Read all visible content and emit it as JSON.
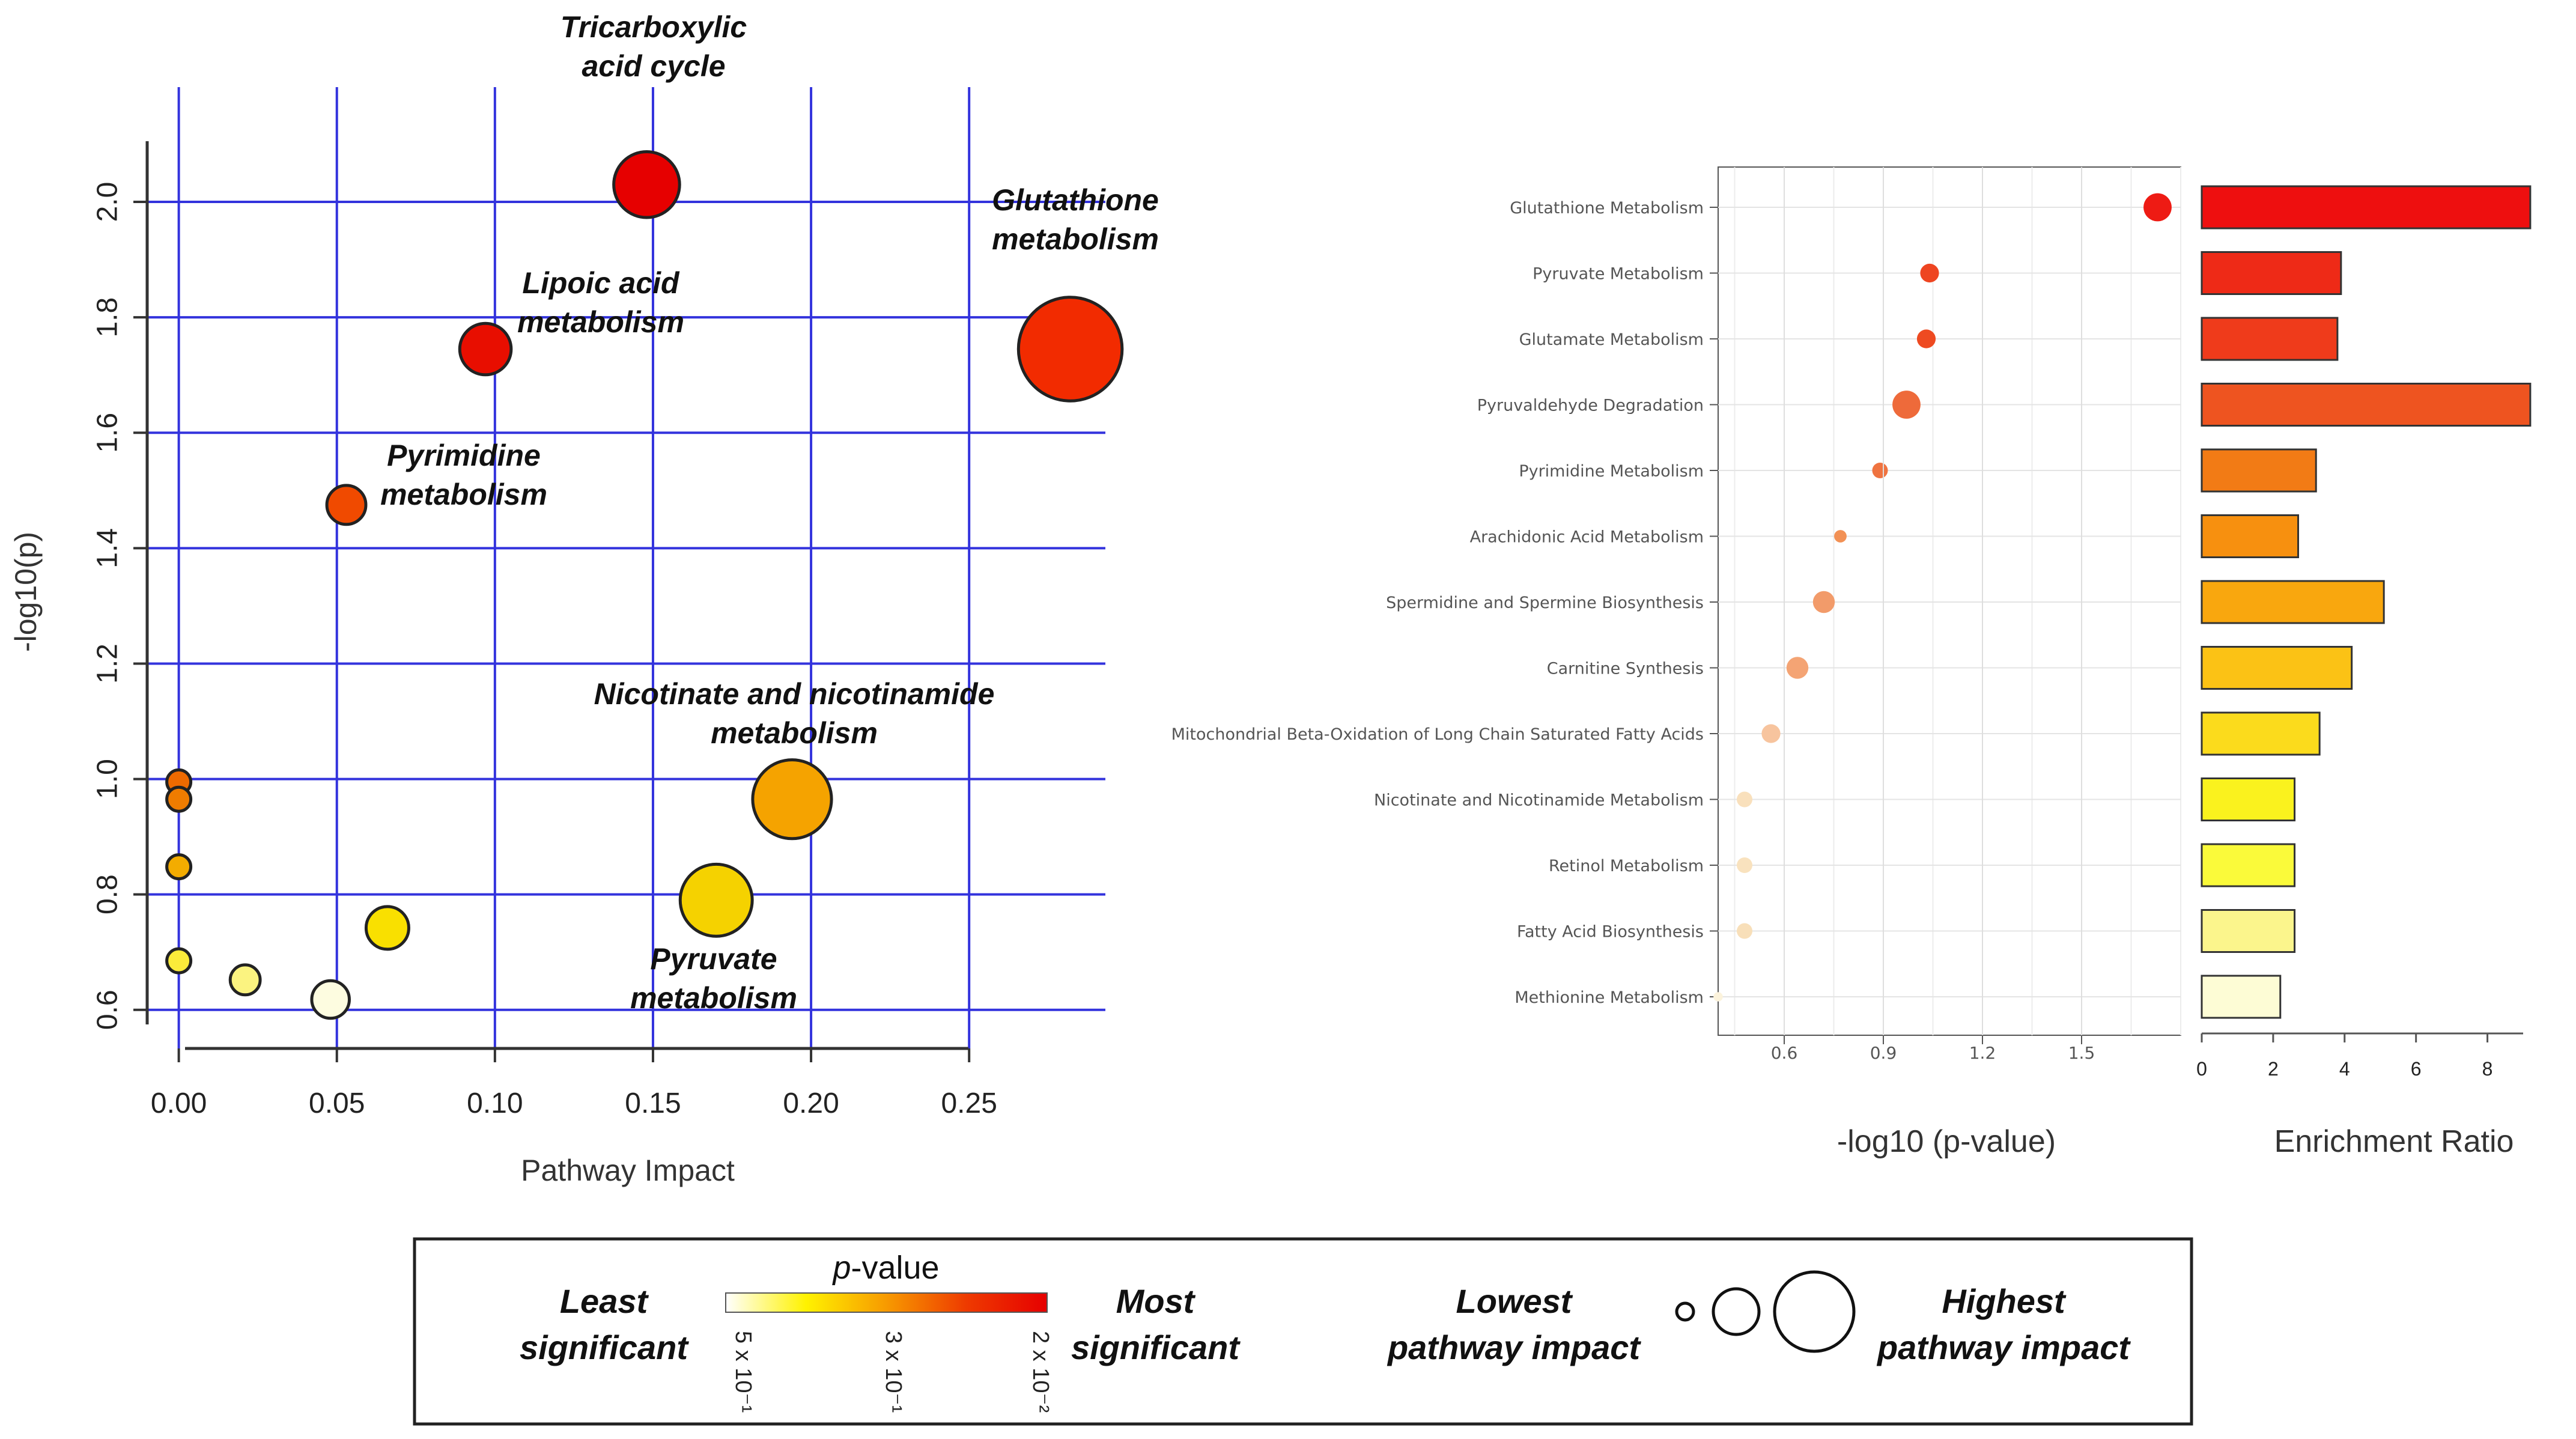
{
  "chart_data": [
    {
      "type": "scatter",
      "xlabel": "Pathway Impact",
      "ylabel": "-log10(p)",
      "xlim": [
        -0.01,
        0.295
      ],
      "ylim": [
        0.58,
        2.1
      ],
      "xticks": [
        "0.00",
        "0.05",
        "0.10",
        "0.15",
        "0.20",
        "0.25"
      ],
      "yticks": [
        "0.6",
        "0.8",
        "1.0",
        "1.2",
        "1.4",
        "1.6",
        "1.8",
        "2.0"
      ],
      "grid": true,
      "points": [
        {
          "x": 0.148,
          "y": 2.03,
          "impact": 0.148,
          "color": "#e60000",
          "label_lines": [
            "Tricarboxylic",
            "acid cycle"
          ]
        },
        {
          "x": 0.282,
          "y": 1.745,
          "impact": 0.282,
          "color": "#f22b00",
          "label_lines": [
            "Glutathione",
            "metabolism"
          ]
        },
        {
          "x": 0.097,
          "y": 1.745,
          "impact": 0.097,
          "color": "#e80e00",
          "label_lines": [
            "Lipoic acid",
            "metabolism"
          ]
        },
        {
          "x": 0.053,
          "y": 1.475,
          "impact": 0.053,
          "color": "#f04a00",
          "label_lines": [
            "Pyrimidine",
            "metabolism"
          ]
        },
        {
          "x": 0.194,
          "y": 0.965,
          "impact": 0.194,
          "color": "#f5a300",
          "label_lines": [
            "Nicotinate and nicotinamide",
            "metabolism"
          ]
        },
        {
          "x": 0.17,
          "y": 0.79,
          "impact": 0.17,
          "color": "#f5d200",
          "label_lines": [
            "Pyruvate",
            "metabolism"
          ]
        },
        {
          "x": 0.0,
          "y": 0.995,
          "impact": 0.0,
          "color": "#ee6a00",
          "label_lines": []
        },
        {
          "x": 0.0,
          "y": 0.965,
          "impact": 0.0,
          "color": "#ef7c00",
          "label_lines": []
        },
        {
          "x": 0.0,
          "y": 0.848,
          "impact": 0.0,
          "color": "#f3ac00",
          "label_lines": []
        },
        {
          "x": 0.0,
          "y": 0.685,
          "impact": 0.0,
          "color": "#fbeb3a",
          "label_lines": []
        },
        {
          "x": 0.066,
          "y": 0.742,
          "impact": 0.066,
          "color": "#f9e000",
          "label_lines": []
        },
        {
          "x": 0.021,
          "y": 0.652,
          "impact": 0.021,
          "color": "#fbf380",
          "label_lines": []
        },
        {
          "x": 0.048,
          "y": 0.618,
          "impact": 0.048,
          "color": "#fdfce0",
          "label_lines": []
        }
      ]
    },
    {
      "type": "scatter",
      "xlabel": "-log10 (p-value)",
      "xlim": [
        0.4,
        1.8
      ],
      "xticks": [
        "0.6",
        "0.9",
        "1.2",
        "1.5"
      ],
      "grid": true,
      "categories": [
        "Glutathione Metabolism",
        "Pyruvate Metabolism",
        "Glutamate Metabolism",
        "Pyruvaldehyde Degradation",
        "Pyrimidine Metabolism",
        "Arachidonic Acid Metabolism",
        "Spermidine and Spermine Biosynthesis",
        "Carnitine Synthesis",
        "Mitochondrial Beta-Oxidation of Long Chain Saturated Fatty Acids",
        "Nicotinate and Nicotinamide Metabolism",
        "Retinol Metabolism",
        "Fatty Acid Biosynthesis",
        "Methionine Metabolism"
      ],
      "values": [
        1.73,
        1.04,
        1.03,
        0.97,
        0.89,
        0.77,
        0.72,
        0.64,
        0.56,
        0.48,
        0.48,
        0.48,
        0.4
      ],
      "point_sizes": [
        9,
        6,
        6,
        9,
        5,
        4,
        7,
        7,
        6,
        5,
        5,
        5,
        3
      ],
      "colors": [
        "#ee1b14",
        "#ee4521",
        "#ee4a21",
        "#ee6a3a",
        "#ef7340",
        "#f29155",
        "#f29b6a",
        "#f4a474",
        "#f7c49e",
        "#f9e0bc",
        "#f9e2be",
        "#f8dfb9",
        "#fcf3dc"
      ]
    },
    {
      "type": "bar",
      "xlabel": "Enrichment Ratio",
      "xlim": [
        0,
        9
      ],
      "xticks": [
        "0",
        "2",
        "4",
        "6",
        "8"
      ],
      "categories": [
        "Glutathione Metabolism",
        "Pyruvate Metabolism",
        "Glutamate Metabolism",
        "Pyruvaldehyde Degradation",
        "Pyrimidine Metabolism",
        "Arachidonic Acid Metabolism",
        "Spermidine and Spermine Biosynthesis",
        "Carnitine Synthesis",
        "Mitochondrial Beta-Oxidation of Long Chain Saturated Fatty Acids",
        "Nicotinate and Nicotinamide Metabolism",
        "Retinol Metabolism",
        "Fatty Acid Biosynthesis",
        "Methionine Metabolism"
      ],
      "values": [
        9.2,
        3.9,
        3.8,
        9.2,
        3.2,
        2.7,
        5.1,
        4.2,
        3.3,
        2.6,
        2.6,
        2.6,
        2.2
      ],
      "colors": [
        "#ee0f0f",
        "#ee2a17",
        "#ef3b1b",
        "#ee5420",
        "#f27b15",
        "#f7900f",
        "#f9a70e",
        "#fbc215",
        "#fbdb1c",
        "#faf21e",
        "#fafa3a",
        "#fbf58c",
        "#fdfcd5"
      ]
    }
  ],
  "legend": {
    "pvalue_title_italic": "p",
    "pvalue_title_rest": "-value",
    "least_line1": "Least",
    "least_line2": "significant",
    "most_line1": "Most",
    "most_line2": "significant",
    "tick_low": "5 x 10⁻¹",
    "tick_mid": "3 x 10⁻¹",
    "tick_high": "2 x 10⁻²",
    "lowest_line1": "Lowest",
    "lowest_line2": "pathway impact",
    "highest_line1": "Highest",
    "highest_line2": "pathway impact",
    "gradient_colors": [
      "#ffffff",
      "#fff200",
      "#f79a00",
      "#ee3a00",
      "#e60000"
    ]
  }
}
